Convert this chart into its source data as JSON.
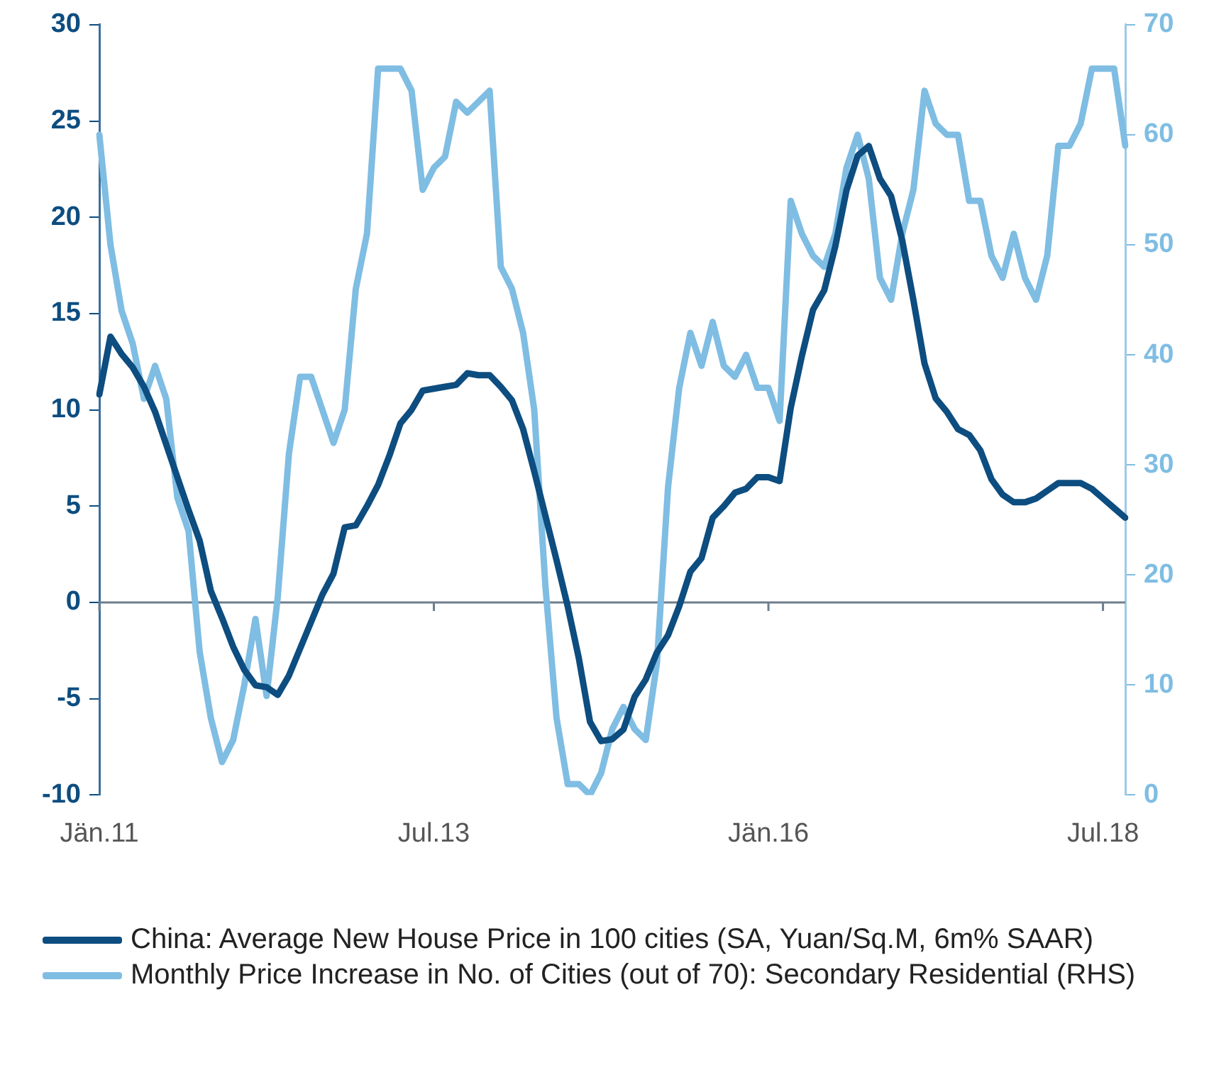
{
  "chart_data": {
    "type": "line",
    "categories": [
      "Jän.11",
      null,
      null,
      null,
      null,
      null,
      null,
      null,
      null,
      null,
      null,
      null,
      null,
      null,
      null,
      null,
      null,
      null,
      null,
      null,
      null,
      null,
      null,
      null,
      null,
      null,
      null,
      null,
      null,
      null,
      "Jul.13",
      null,
      null,
      null,
      null,
      null,
      null,
      null,
      null,
      null,
      null,
      null,
      null,
      null,
      null,
      null,
      null,
      null,
      null,
      null,
      null,
      null,
      null,
      null,
      null,
      null,
      null,
      null,
      null,
      null,
      "Jän.16",
      null,
      null,
      null,
      null,
      null,
      null,
      null,
      null,
      null,
      null,
      null,
      null,
      null,
      null,
      null,
      null,
      null,
      null,
      null,
      null,
      null,
      null,
      null,
      null,
      null,
      null,
      null,
      null,
      null,
      "Jul.18",
      null,
      null
    ],
    "series": [
      {
        "name": "China: Average New House Price in 100 cities (SA, Yuan/Sq.M, 6m% SAAR)",
        "color": "#0d4d80",
        "values": [
          10.8,
          13.8,
          12.9,
          12.2,
          11.2,
          9.9,
          8.2,
          6.5,
          4.8,
          3.2,
          0.6,
          -0.8,
          -2.3,
          -3.5,
          -4.3,
          -4.4,
          -4.8,
          -3.8,
          -2.4,
          -1.0,
          0.4,
          1.5,
          3.9,
          4.0,
          5.0,
          6.1,
          7.6,
          9.3,
          10.0,
          11.0,
          11.1,
          11.2,
          11.3,
          11.9,
          11.8,
          11.8,
          11.2,
          10.5,
          9.0,
          6.8,
          4.5,
          2.2,
          -0.2,
          -2.9,
          -6.2,
          -7.2,
          -7.1,
          -6.6,
          -4.9,
          -4.0,
          -2.6,
          -1.7,
          -0.2,
          1.6,
          2.3,
          4.4,
          5.0,
          5.7,
          5.9,
          6.5,
          6.5,
          6.3,
          10.1,
          12.8,
          15.2,
          16.2,
          18.5,
          21.4,
          23.2,
          23.7,
          22.0,
          21.1,
          18.8,
          15.7,
          12.4,
          10.6,
          9.9,
          9.0,
          8.7,
          7.9,
          6.4,
          5.6,
          5.2,
          5.2,
          5.4,
          5.8,
          6.2,
          6.2,
          6.2,
          5.9,
          5.4,
          4.9,
          4.4
        ]
      },
      {
        "name": "Monthly Price Increase in No. of Cities (out of 70): Secondary Residential (RHS)",
        "color": "#7fbde3",
        "axis": "y2",
        "values": [
          60,
          50,
          44,
          41,
          36,
          39,
          36,
          27,
          24,
          13,
          7,
          3,
          5,
          10,
          16,
          9,
          18,
          31,
          38,
          38,
          35,
          32,
          35,
          46,
          51,
          66,
          66,
          66,
          64,
          55,
          57,
          58,
          63,
          62,
          63,
          64,
          48,
          46,
          42,
          35,
          19,
          7,
          1,
          1,
          0,
          2,
          6,
          8,
          6,
          5,
          12,
          28,
          37,
          42,
          39,
          43,
          39,
          38,
          40,
          37,
          37,
          34,
          54,
          51,
          49,
          48,
          51,
          57,
          60,
          56,
          47,
          45,
          51,
          55,
          64,
          61,
          60,
          60,
          54,
          54,
          49,
          47,
          51,
          47,
          45,
          49,
          59,
          59,
          61,
          66,
          66,
          66,
          59
        ]
      }
    ],
    "ylim": [
      -10,
      30
    ],
    "yticks": [
      -10,
      -5,
      0,
      5,
      10,
      15,
      20,
      25,
      30
    ],
    "y2lim": [
      0,
      70
    ],
    "y2ticks": [
      0,
      10,
      20,
      30,
      40,
      50,
      60,
      70
    ],
    "ref_lines": [
      {
        "axis": "y",
        "value": 0,
        "color": "#6f7e8c"
      }
    ],
    "legend": "bottom",
    "marker": "none",
    "line_style": "solid"
  }
}
